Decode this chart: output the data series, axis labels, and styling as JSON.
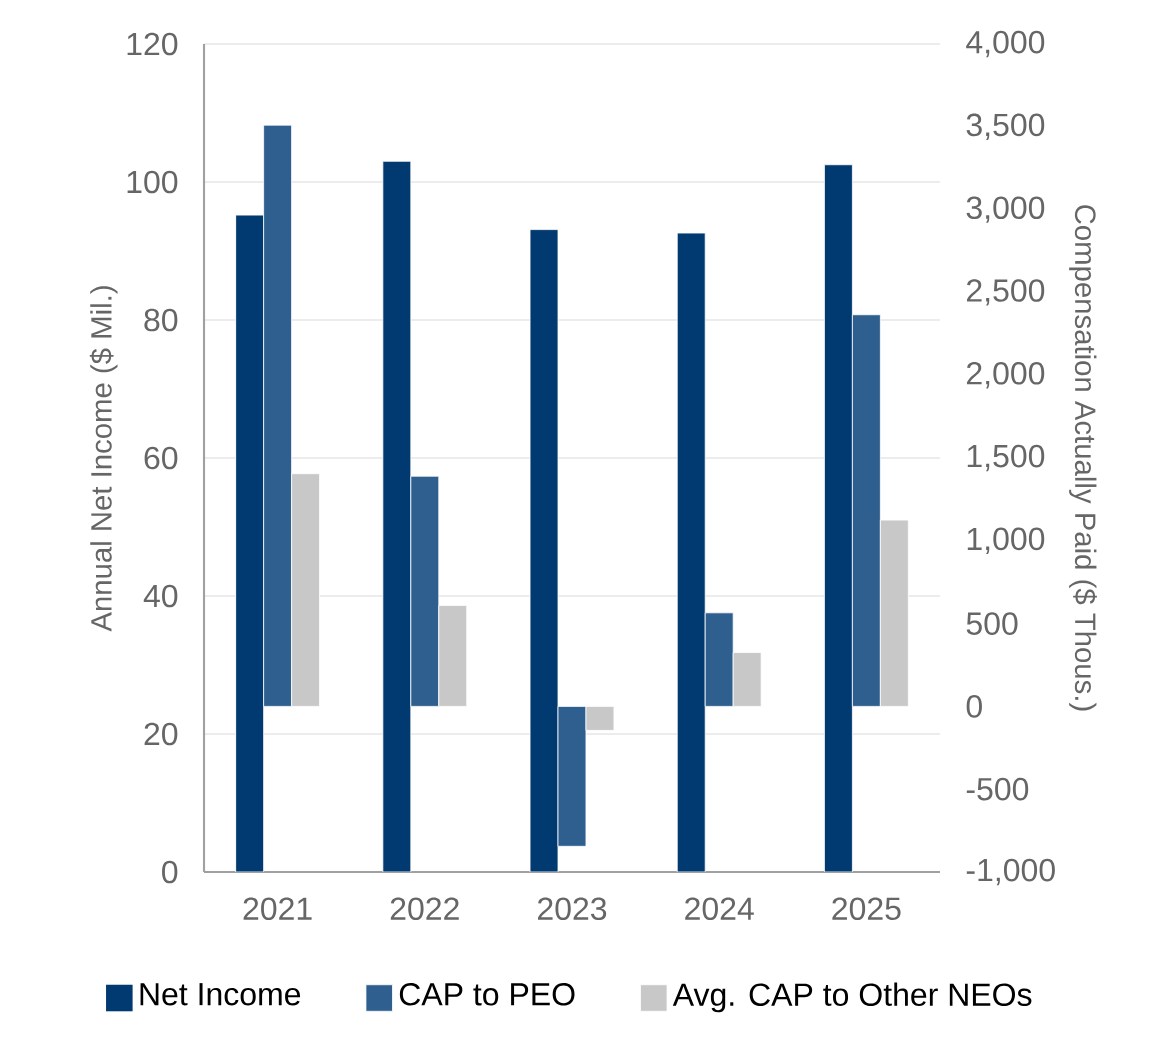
{
  "chart_data": {
    "type": "bar",
    "categories": [
      "2021",
      "2022",
      "2023",
      "2024",
      "2025"
    ],
    "ylabel": "Annual Net Income ($ Mil.)",
    "y2label": "Compensation Actually Paid ($ Thous.)",
    "series": [
      {
        "name": "Net Income",
        "color": "#003a70",
        "values": [
          95.2,
          103.0,
          93.1,
          92.6,
          102.5
        ]
      },
      {
        "name": "CAP to PEO",
        "color": "#2e5f8e",
        "axis": "y2",
        "values": [
          3510,
          1390,
          -845,
          565,
          2365
        ]
      },
      {
        "name": "Avg. CAP to Other NEOs",
        "color": "#c8c8c8",
        "axis": "y2",
        "values": [
          1405,
          610,
          -145,
          325,
          1125
        ]
      }
    ],
    "ylim": [
      0,
      120
    ],
    "yticks": [
      0,
      20,
      40,
      60,
      80,
      100,
      120
    ],
    "y2lim": [
      -1000,
      4000
    ],
    "y2ticks": [
      {
        "value": -1000,
        "label": "-1,000"
      },
      {
        "value": -500,
        "label": "-500"
      },
      {
        "value": 0,
        "label": "0"
      },
      {
        "value": 500,
        "label": "500"
      },
      {
        "value": 1000,
        "label": "1,000"
      },
      {
        "value": 1500,
        "label": "1,500"
      },
      {
        "value": 2000,
        "label": "2,000"
      },
      {
        "value": 2500,
        "label": "2,500"
      },
      {
        "value": 3000,
        "label": "3,000"
      },
      {
        "value": 3500,
        "label": "3,500"
      },
      {
        "value": 4000,
        "label": "4,000"
      }
    ],
    "grid": "y",
    "legend": "bottom"
  }
}
